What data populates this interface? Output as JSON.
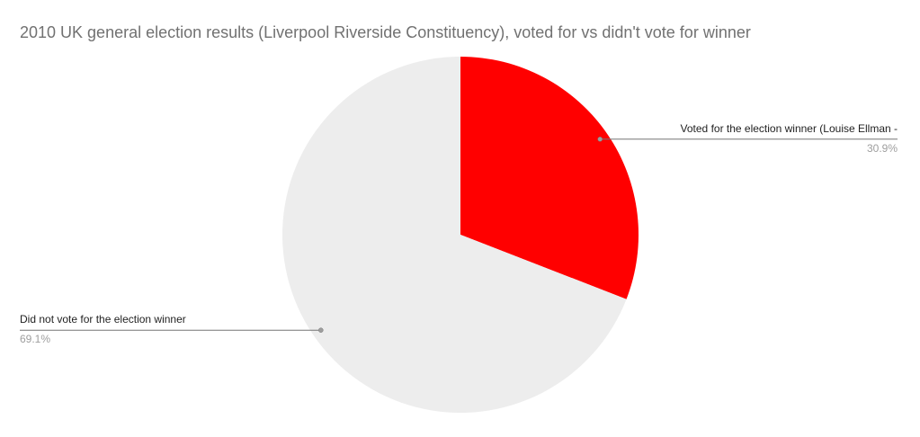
{
  "page": {
    "background": "#ffffff"
  },
  "chart_data": {
    "type": "pie",
    "title": "2010 UK general election results (Liverpool Riverside Constituency), voted for vs didn't vote for winner",
    "title_color": "#717171",
    "legend_position": "none",
    "labels_style": "callout",
    "start_angle_deg": 0,
    "direction": "clockwise",
    "leader_line_color": "#757575",
    "slices": [
      {
        "label": "Voted for the election winner (Louise Ellman -",
        "pct_label": "30.9%",
        "value": 30.9,
        "color": "#ff0000",
        "callout_side": "right"
      },
      {
        "label": "Did not vote for the election winner",
        "pct_label": "69.1%",
        "value": 69.1,
        "color": "#ededed",
        "callout_side": "left"
      }
    ]
  }
}
